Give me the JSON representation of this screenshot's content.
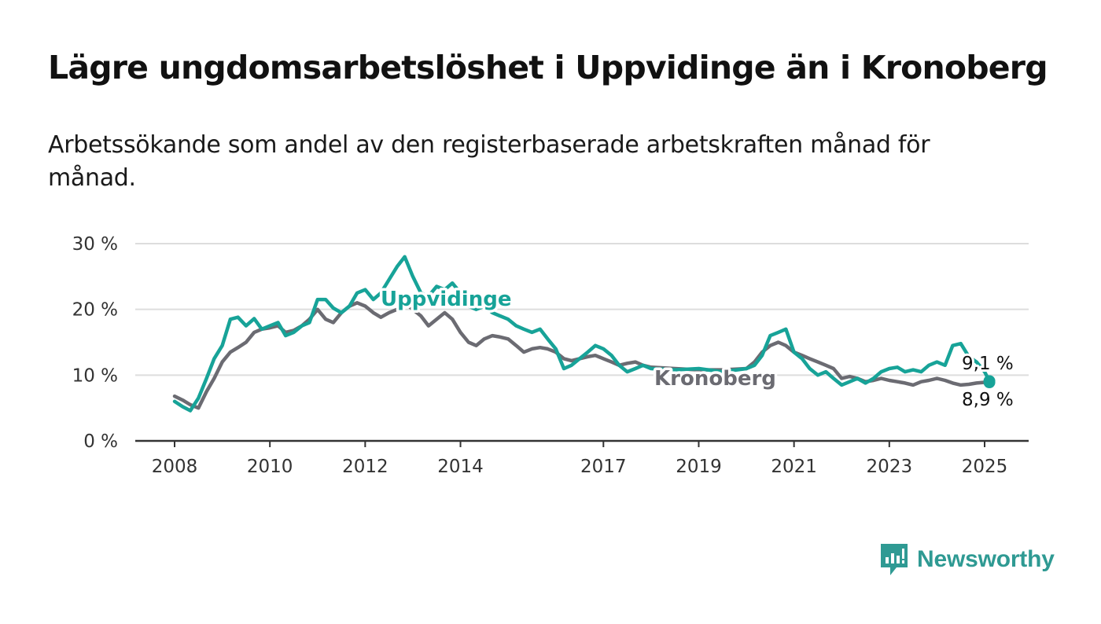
{
  "title": "Lägre ungdomsarbetslöshet i Uppvidinge än i Kronoberg",
  "subtitle": "Arbetssökande som andel av den registerbaserade arbetskraften månad för månad.",
  "brand": {
    "name": "Newsworthy",
    "icon": "newsworthy-logo-icon"
  },
  "colors": {
    "uppvidinge": "#17a398",
    "kronoberg": "#6b6b72",
    "grid": "#dddddd",
    "axis": "#333333"
  },
  "chart_data": {
    "type": "line",
    "title": "Lägre ungdomsarbetslöshet i Uppvidinge än i Kronoberg",
    "subtitle": "Arbetssökande som andel av den registerbaserade arbetskraften månad för månad.",
    "x_unit": "year (decimal)",
    "xlim": [
      2007.2,
      2026.0
    ],
    "ylim": [
      0,
      30
    ],
    "y_ticks": [
      0,
      10,
      20,
      30
    ],
    "y_tick_labels": [
      "0 %",
      "10 %",
      "20 %",
      "30 %"
    ],
    "x_ticks": [
      2008,
      2010,
      2012,
      2014,
      2017,
      2019,
      2021,
      2023,
      2025
    ],
    "x_tick_labels": [
      "2008",
      "2010",
      "2012",
      "2014",
      "2017",
      "2019",
      "2021",
      "2023",
      "2025"
    ],
    "grid": "horizontal",
    "series": [
      {
        "name": "Uppvidinge",
        "color": "#17a398",
        "end_label": "9,1 %",
        "x": [
          2008.0,
          2008.17,
          2008.33,
          2008.5,
          2008.67,
          2008.83,
          2009.0,
          2009.17,
          2009.33,
          2009.5,
          2009.67,
          2009.83,
          2010.0,
          2010.17,
          2010.33,
          2010.5,
          2010.67,
          2010.83,
          2011.0,
          2011.17,
          2011.33,
          2011.5,
          2011.67,
          2011.83,
          2012.0,
          2012.17,
          2012.33,
          2012.5,
          2012.67,
          2012.83,
          2013.0,
          2013.17,
          2013.33,
          2013.5,
          2013.67,
          2013.83,
          2014.0,
          2014.17,
          2014.33,
          2014.5,
          2014.67,
          2014.83,
          2015.0,
          2015.17,
          2015.33,
          2015.5,
          2015.67,
          2015.83,
          2016.0,
          2016.17,
          2016.33,
          2016.5,
          2016.67,
          2016.83,
          2017.0,
          2017.17,
          2017.33,
          2017.5,
          2017.67,
          2017.83,
          2018.0,
          2018.5,
          2019.0,
          2019.5,
          2020.0,
          2020.17,
          2020.33,
          2020.5,
          2020.67,
          2020.83,
          2021.0,
          2021.17,
          2021.33,
          2021.5,
          2021.67,
          2021.83,
          2022.0,
          2022.17,
          2022.33,
          2022.5,
          2022.67,
          2022.83,
          2023.0,
          2023.17,
          2023.33,
          2023.5,
          2023.67,
          2023.83,
          2024.0,
          2024.17,
          2024.33,
          2024.5,
          2024.67,
          2024.83,
          2025.0,
          2025.1
        ],
        "y": [
          6.0,
          5.2,
          4.6,
          6.5,
          9.5,
          12.5,
          14.5,
          18.5,
          18.8,
          17.5,
          18.6,
          17.0,
          17.5,
          18.0,
          16.0,
          16.5,
          17.5,
          18.0,
          21.5,
          21.5,
          20.2,
          19.5,
          20.5,
          22.5,
          23.0,
          21.5,
          22.5,
          24.5,
          26.5,
          28.0,
          25.0,
          22.5,
          22.0,
          23.5,
          23.0,
          24.0,
          22.5,
          20.5,
          20.0,
          20.5,
          19.5,
          19.0,
          18.5,
          17.5,
          17.0,
          16.5,
          17.0,
          15.5,
          14.0,
          11.0,
          11.5,
          12.5,
          13.5,
          14.5,
          14.0,
          13.0,
          11.5,
          10.5,
          11.0,
          11.5,
          11.0,
          10.8,
          11.0,
          10.5,
          11.0,
          11.5,
          13.0,
          16.0,
          16.5,
          17.0,
          13.5,
          12.5,
          11.0,
          10.0,
          10.5,
          9.5,
          8.5,
          9.0,
          9.5,
          8.8,
          9.5,
          10.5,
          11.0,
          11.2,
          10.5,
          10.8,
          10.5,
          11.5,
          12.0,
          11.5,
          14.5,
          14.8,
          12.8,
          12.0,
          10.5,
          9.1
        ]
      },
      {
        "name": "Kronoberg",
        "color": "#6b6b72",
        "end_label": "8,9 %",
        "x": [
          2008.0,
          2008.17,
          2008.33,
          2008.5,
          2008.67,
          2008.83,
          2009.0,
          2009.17,
          2009.33,
          2009.5,
          2009.67,
          2009.83,
          2010.0,
          2010.17,
          2010.33,
          2010.5,
          2010.67,
          2010.83,
          2011.0,
          2011.17,
          2011.33,
          2011.5,
          2011.67,
          2011.83,
          2012.0,
          2012.17,
          2012.33,
          2012.5,
          2012.67,
          2012.83,
          2013.0,
          2013.17,
          2013.33,
          2013.5,
          2013.67,
          2013.83,
          2014.0,
          2014.17,
          2014.33,
          2014.5,
          2014.67,
          2014.83,
          2015.0,
          2015.17,
          2015.33,
          2015.5,
          2015.67,
          2015.83,
          2016.0,
          2016.17,
          2016.33,
          2016.5,
          2016.67,
          2016.83,
          2017.0,
          2017.17,
          2017.33,
          2017.5,
          2017.67,
          2017.83,
          2018.0,
          2018.5,
          2019.0,
          2019.5,
          2020.0,
          2020.17,
          2020.33,
          2020.5,
          2020.67,
          2020.83,
          2021.0,
          2021.17,
          2021.33,
          2021.5,
          2021.67,
          2021.83,
          2022.0,
          2022.17,
          2022.33,
          2022.5,
          2022.67,
          2022.83,
          2023.0,
          2023.17,
          2023.33,
          2023.5,
          2023.67,
          2023.83,
          2024.0,
          2024.17,
          2024.33,
          2024.5,
          2024.67,
          2024.83,
          2025.0,
          2025.1
        ],
        "y": [
          6.8,
          6.2,
          5.5,
          5.0,
          7.5,
          9.5,
          12.0,
          13.5,
          14.2,
          15.0,
          16.5,
          17.0,
          17.2,
          17.5,
          16.5,
          16.8,
          17.5,
          18.5,
          20.0,
          18.5,
          18.0,
          19.5,
          20.5,
          21.0,
          20.5,
          19.5,
          18.8,
          19.5,
          20.0,
          21.0,
          20.0,
          19.0,
          17.5,
          18.5,
          19.5,
          18.5,
          16.5,
          15.0,
          14.5,
          15.5,
          16.0,
          15.8,
          15.5,
          14.5,
          13.5,
          14.0,
          14.2,
          14.0,
          13.5,
          12.5,
          12.2,
          12.5,
          12.8,
          13.0,
          12.5,
          12.0,
          11.5,
          11.8,
          12.0,
          11.5,
          11.2,
          11.0,
          10.8,
          10.8,
          11.0,
          12.0,
          13.5,
          14.5,
          15.0,
          14.5,
          13.5,
          13.0,
          12.5,
          12.0,
          11.5,
          11.0,
          9.5,
          9.8,
          9.5,
          9.0,
          9.2,
          9.5,
          9.2,
          9.0,
          8.8,
          8.5,
          9.0,
          9.2,
          9.5,
          9.2,
          8.8,
          8.5,
          8.6,
          8.8,
          8.9,
          8.9
        ]
      }
    ]
  }
}
